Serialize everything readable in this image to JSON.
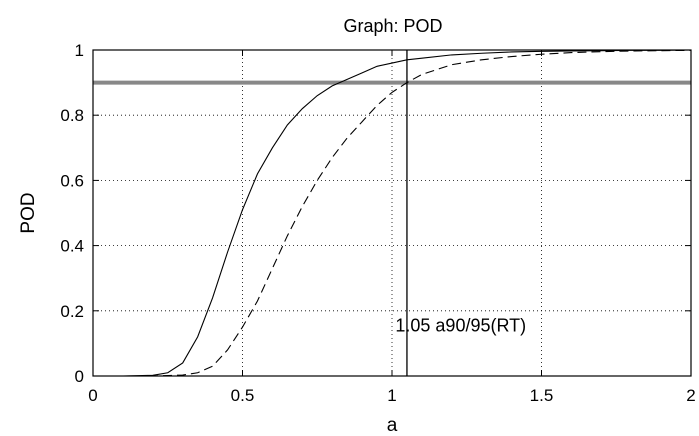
{
  "chart_data": {
    "type": "line",
    "title": "Graph: POD",
    "xlabel": "a",
    "ylabel": "POD",
    "xlim": [
      0,
      2
    ],
    "ylim": [
      0,
      1
    ],
    "xticks": [
      0,
      0.5,
      1,
      1.5,
      2
    ],
    "xtick_labels": [
      "0",
      "0.5",
      "1",
      "1.5",
      "2"
    ],
    "yticks": [
      0,
      0.2,
      0.4,
      0.6,
      0.8,
      1
    ],
    "ytick_labels": [
      "0",
      "0.2",
      "0.4",
      "0.6",
      "0.8",
      "1"
    ],
    "grid": true,
    "series": [
      {
        "style": "solid",
        "color": "#000000",
        "x": [
          0,
          0.1,
          0.2,
          0.25,
          0.3,
          0.35,
          0.4,
          0.45,
          0.5,
          0.55,
          0.6,
          0.65,
          0.7,
          0.75,
          0.8,
          0.85,
          0.9,
          0.95,
          1.0,
          1.05,
          1.1,
          1.2,
          1.3,
          1.4,
          1.5,
          1.6,
          1.7,
          1.8,
          1.9,
          2.0
        ],
        "y": [
          0,
          0,
          0.002,
          0.01,
          0.04,
          0.12,
          0.24,
          0.38,
          0.51,
          0.62,
          0.7,
          0.77,
          0.82,
          0.86,
          0.89,
          0.91,
          0.93,
          0.95,
          0.96,
          0.97,
          0.975,
          0.985,
          0.99,
          0.994,
          0.996,
          0.997,
          0.998,
          0.999,
          0.999,
          1.0
        ]
      },
      {
        "style": "dashed",
        "color": "#000000",
        "x": [
          0,
          0.2,
          0.3,
          0.35,
          0.4,
          0.45,
          0.5,
          0.55,
          0.6,
          0.65,
          0.7,
          0.75,
          0.8,
          0.85,
          0.9,
          0.95,
          1.0,
          1.05,
          1.1,
          1.2,
          1.3,
          1.4,
          1.5,
          1.6,
          1.7,
          1.8,
          1.9,
          2.0
        ],
        "y": [
          0,
          0,
          0.003,
          0.01,
          0.03,
          0.08,
          0.15,
          0.23,
          0.33,
          0.43,
          0.52,
          0.6,
          0.67,
          0.73,
          0.78,
          0.83,
          0.87,
          0.9,
          0.925,
          0.955,
          0.97,
          0.98,
          0.987,
          0.992,
          0.995,
          0.997,
          0.998,
          0.999
        ]
      }
    ],
    "reference_lines": [
      {
        "orientation": "horizontal",
        "value": 0.9,
        "color": "#888888"
      },
      {
        "orientation": "vertical",
        "value": 1.05,
        "color": "#000000"
      }
    ],
    "annotation": {
      "text": "1.05 a90/95(RT)",
      "x": 1.23,
      "y": 0.155
    }
  }
}
